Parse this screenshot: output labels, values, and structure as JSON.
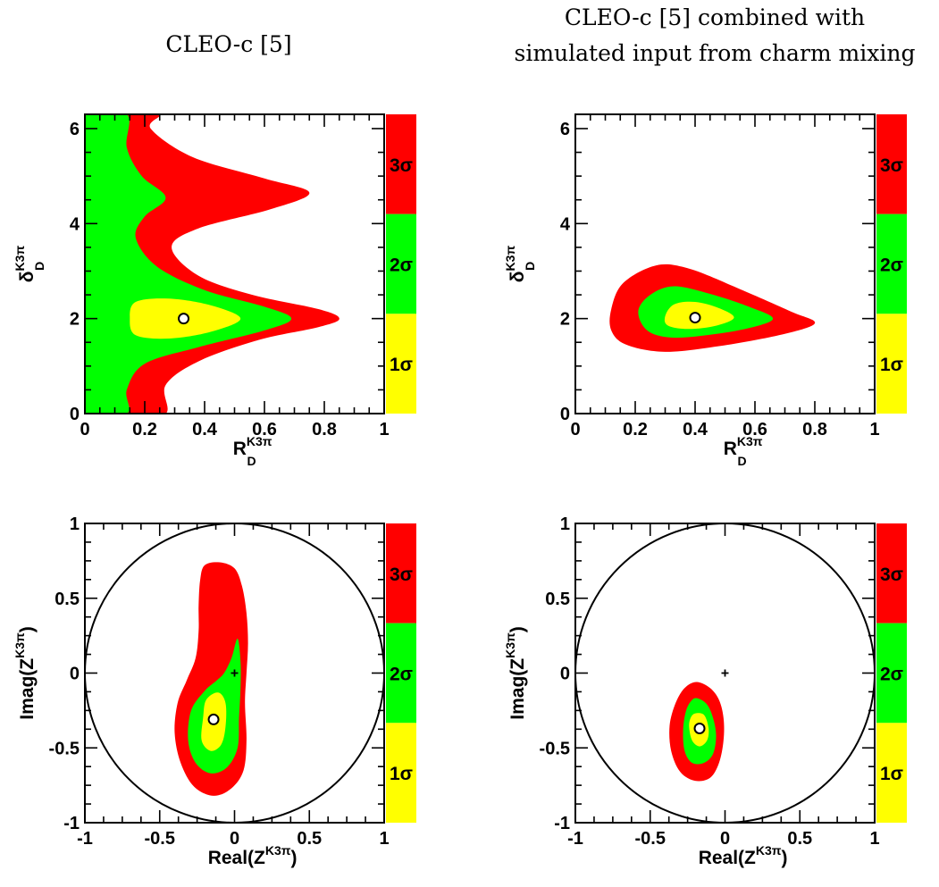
{
  "colors": {
    "one_sigma": "#ffff00",
    "two_sigma": "#00ff00",
    "three_sigma": "#ff0000",
    "axes": "#000000",
    "background": "#ffffff"
  },
  "column_titles": {
    "left": [
      "CLEO-c [5]"
    ],
    "right": [
      "CLEO-c [5] combined with",
      "simulated input from charm mixing"
    ]
  },
  "chart_data": [
    {
      "type": "contour",
      "panel": "top-left",
      "x_label": {
        "main": "R",
        "sup": "K3π",
        "sub": "D"
      },
      "y_label": {
        "main": "δ",
        "sup": "K3π",
        "sub": "D"
      },
      "xlim": [
        0,
        1
      ],
      "ylim": [
        0,
        6.3
      ],
      "x_ticks": [
        "0",
        "0.2",
        "0.4",
        "0.6",
        "0.8",
        "1"
      ],
      "y_ticks": [
        "0",
        "2",
        "4",
        "6"
      ],
      "x_tick_values": [
        0,
        0.2,
        0.4,
        0.6,
        0.8,
        1
      ],
      "y_tick_values": [
        0,
        2,
        4,
        6
      ],
      "best_fit": [
        0.33,
        2.0
      ],
      "legend": [
        "3σ",
        "2σ",
        "1σ"
      ],
      "regions": {
        "three_sigma": [
          [
            0.27,
            0
          ],
          [
            0.27,
            0.6
          ],
          [
            0.38,
            1.1
          ],
          [
            0.58,
            1.55
          ],
          [
            0.78,
            1.82
          ],
          [
            0.85,
            2.0
          ],
          [
            0.78,
            2.2
          ],
          [
            0.56,
            2.5
          ],
          [
            0.38,
            2.9
          ],
          [
            0.29,
            3.5
          ],
          [
            0.38,
            3.9
          ],
          [
            0.62,
            4.3
          ],
          [
            0.75,
            4.65
          ],
          [
            0.6,
            4.95
          ],
          [
            0.36,
            5.4
          ],
          [
            0.22,
            6.0
          ],
          [
            0.25,
            6.3
          ],
          [
            0.14,
            6.3
          ],
          [
            0.14,
            0
          ]
        ],
        "two_sigma": [
          [
            0,
            0
          ],
          [
            0.14,
            0
          ],
          [
            0.14,
            0.5
          ],
          [
            0.2,
            1.05
          ],
          [
            0.38,
            1.4
          ],
          [
            0.6,
            1.75
          ],
          [
            0.69,
            2.0
          ],
          [
            0.6,
            2.25
          ],
          [
            0.4,
            2.6
          ],
          [
            0.24,
            3.1
          ],
          [
            0.17,
            3.7
          ],
          [
            0.2,
            4.15
          ],
          [
            0.27,
            4.55
          ],
          [
            0.19,
            5.0
          ],
          [
            0.14,
            5.6
          ],
          [
            0.14,
            6.3
          ],
          [
            0,
            6.3
          ]
        ],
        "one_sigma": [
          [
            0.15,
            2.0
          ],
          [
            0.17,
            2.35
          ],
          [
            0.28,
            2.42
          ],
          [
            0.42,
            2.28
          ],
          [
            0.52,
            2.0
          ],
          [
            0.42,
            1.72
          ],
          [
            0.28,
            1.58
          ],
          [
            0.17,
            1.65
          ]
        ]
      }
    },
    {
      "type": "contour",
      "panel": "top-right",
      "x_label": {
        "main": "R",
        "sup": "K3π",
        "sub": "D"
      },
      "y_label": {
        "main": "δ",
        "sup": "K3π",
        "sub": "D"
      },
      "xlim": [
        0,
        1
      ],
      "ylim": [
        0,
        6.3
      ],
      "x_ticks": [
        "0",
        "0.2",
        "0.4",
        "0.6",
        "0.8",
        "1"
      ],
      "y_ticks": [
        "0",
        "2",
        "4",
        "6"
      ],
      "x_tick_values": [
        0,
        0.2,
        0.4,
        0.6,
        0.8,
        1
      ],
      "y_tick_values": [
        0,
        2,
        4,
        6
      ],
      "best_fit": [
        0.4,
        2.02
      ],
      "legend": [
        "3σ",
        "2σ",
        "1σ"
      ],
      "regions": {
        "three_sigma": [
          [
            0.12,
            2.2
          ],
          [
            0.16,
            2.75
          ],
          [
            0.27,
            3.12
          ],
          [
            0.38,
            3.05
          ],
          [
            0.55,
            2.62
          ],
          [
            0.72,
            2.15
          ],
          [
            0.8,
            1.9
          ],
          [
            0.68,
            1.65
          ],
          [
            0.48,
            1.42
          ],
          [
            0.3,
            1.3
          ],
          [
            0.17,
            1.45
          ],
          [
            0.12,
            1.75
          ]
        ],
        "two_sigma": [
          [
            0.21,
            2.15
          ],
          [
            0.25,
            2.5
          ],
          [
            0.33,
            2.68
          ],
          [
            0.45,
            2.52
          ],
          [
            0.58,
            2.25
          ],
          [
            0.66,
            2.0
          ],
          [
            0.58,
            1.8
          ],
          [
            0.45,
            1.66
          ],
          [
            0.32,
            1.6
          ],
          [
            0.24,
            1.75
          ]
        ],
        "one_sigma": [
          [
            0.3,
            2.05
          ],
          [
            0.33,
            2.3
          ],
          [
            0.4,
            2.35
          ],
          [
            0.48,
            2.22
          ],
          [
            0.53,
            2.02
          ],
          [
            0.47,
            1.85
          ],
          [
            0.38,
            1.78
          ],
          [
            0.31,
            1.85
          ]
        ]
      }
    },
    {
      "type": "contour",
      "panel": "bottom-left",
      "x_label": {
        "main": "Real(Z",
        "sup": "K3π",
        "close": ")"
      },
      "y_label": {
        "main": "Imag(Z",
        "sup": "K3π",
        "close": ")"
      },
      "xlim": [
        -1,
        1
      ],
      "ylim": [
        -1,
        1
      ],
      "x_ticks": [
        "-1",
        "-0.5",
        "0",
        "0.5",
        "1"
      ],
      "y_ticks": [
        "-1",
        "-0.5",
        "0",
        "0.5",
        "1"
      ],
      "x_tick_values": [
        -1,
        -0.5,
        0,
        0.5,
        1
      ],
      "y_tick_values": [
        -1,
        -0.5,
        0,
        0.5,
        1
      ],
      "unit_circle": true,
      "origin_marker": [
        0,
        0
      ],
      "best_fit": [
        -0.14,
        -0.31
      ],
      "legend": [
        "3σ",
        "2σ",
        "1σ"
      ],
      "regions": {
        "three_sigma": [
          [
            -0.23,
            0.62
          ],
          [
            -0.2,
            0.72
          ],
          [
            -0.1,
            0.74
          ],
          [
            0.0,
            0.7
          ],
          [
            0.05,
            0.58
          ],
          [
            0.08,
            0.4
          ],
          [
            0.09,
            0.2
          ],
          [
            0.08,
            0.0
          ],
          [
            0.07,
            -0.2
          ],
          [
            0.08,
            -0.45
          ],
          [
            0.06,
            -0.65
          ],
          [
            -0.02,
            -0.77
          ],
          [
            -0.14,
            -0.82
          ],
          [
            -0.27,
            -0.76
          ],
          [
            -0.36,
            -0.6
          ],
          [
            -0.4,
            -0.4
          ],
          [
            -0.38,
            -0.2
          ],
          [
            -0.32,
            -0.05
          ],
          [
            -0.26,
            0.1
          ],
          [
            -0.24,
            0.28
          ],
          [
            -0.24,
            0.45
          ]
        ],
        "two_sigma": [
          [
            -0.07,
            0.0
          ],
          [
            -0.02,
            0.1
          ],
          [
            0.02,
            0.23
          ],
          [
            0.04,
            0.08
          ],
          [
            0.04,
            -0.1
          ],
          [
            0.03,
            -0.3
          ],
          [
            0.02,
            -0.5
          ],
          [
            -0.05,
            -0.63
          ],
          [
            -0.16,
            -0.67
          ],
          [
            -0.26,
            -0.6
          ],
          [
            -0.31,
            -0.45
          ],
          [
            -0.29,
            -0.25
          ],
          [
            -0.2,
            -0.12
          ],
          [
            -0.12,
            -0.05
          ]
        ],
        "one_sigma": [
          [
            -0.21,
            -0.3
          ],
          [
            -0.19,
            -0.18
          ],
          [
            -0.11,
            -0.13
          ],
          [
            -0.06,
            -0.2
          ],
          [
            -0.06,
            -0.36
          ],
          [
            -0.09,
            -0.48
          ],
          [
            -0.16,
            -0.52
          ],
          [
            -0.22,
            -0.45
          ]
        ]
      }
    },
    {
      "type": "contour",
      "panel": "bottom-right",
      "x_label": {
        "main": "Real(Z",
        "sup": "K3π",
        "close": ")"
      },
      "y_label": {
        "main": "Imag(Z",
        "sup": "K3π",
        "close": ")"
      },
      "xlim": [
        -1,
        1
      ],
      "ylim": [
        -1,
        1
      ],
      "x_ticks": [
        "-1",
        "-0.5",
        "0",
        "0.5",
        "1"
      ],
      "y_ticks": [
        "-1",
        "-0.5",
        "0",
        "0.5",
        "1"
      ],
      "x_tick_values": [
        -1,
        -0.5,
        0,
        0.5,
        1
      ],
      "y_tick_values": [
        -1,
        -0.5,
        0,
        0.5,
        1
      ],
      "unit_circle": true,
      "origin_marker": [
        0,
        0
      ],
      "best_fit": [
        -0.17,
        -0.37
      ],
      "legend": [
        "3σ",
        "2σ",
        "1σ"
      ],
      "regions": {
        "three_sigma": [
          [
            -0.19,
            -0.06
          ],
          [
            -0.1,
            -0.1
          ],
          [
            -0.04,
            -0.18
          ],
          [
            -0.01,
            -0.3
          ],
          [
            -0.01,
            -0.45
          ],
          [
            -0.04,
            -0.6
          ],
          [
            -0.1,
            -0.7
          ],
          [
            -0.2,
            -0.72
          ],
          [
            -0.3,
            -0.66
          ],
          [
            -0.36,
            -0.52
          ],
          [
            -0.37,
            -0.35
          ],
          [
            -0.33,
            -0.2
          ],
          [
            -0.27,
            -0.1
          ]
        ],
        "two_sigma": [
          [
            -0.18,
            -0.17
          ],
          [
            -0.12,
            -0.21
          ],
          [
            -0.08,
            -0.3
          ],
          [
            -0.06,
            -0.42
          ],
          [
            -0.08,
            -0.54
          ],
          [
            -0.14,
            -0.6
          ],
          [
            -0.22,
            -0.6
          ],
          [
            -0.27,
            -0.52
          ],
          [
            -0.28,
            -0.38
          ],
          [
            -0.26,
            -0.25
          ],
          [
            -0.22,
            -0.18
          ]
        ],
        "one_sigma": [
          [
            -0.2,
            -0.27
          ],
          [
            -0.14,
            -0.28
          ],
          [
            -0.11,
            -0.37
          ],
          [
            -0.12,
            -0.45
          ],
          [
            -0.17,
            -0.49
          ],
          [
            -0.22,
            -0.45
          ],
          [
            -0.24,
            -0.36
          ],
          [
            -0.23,
            -0.3
          ]
        ]
      }
    }
  ]
}
